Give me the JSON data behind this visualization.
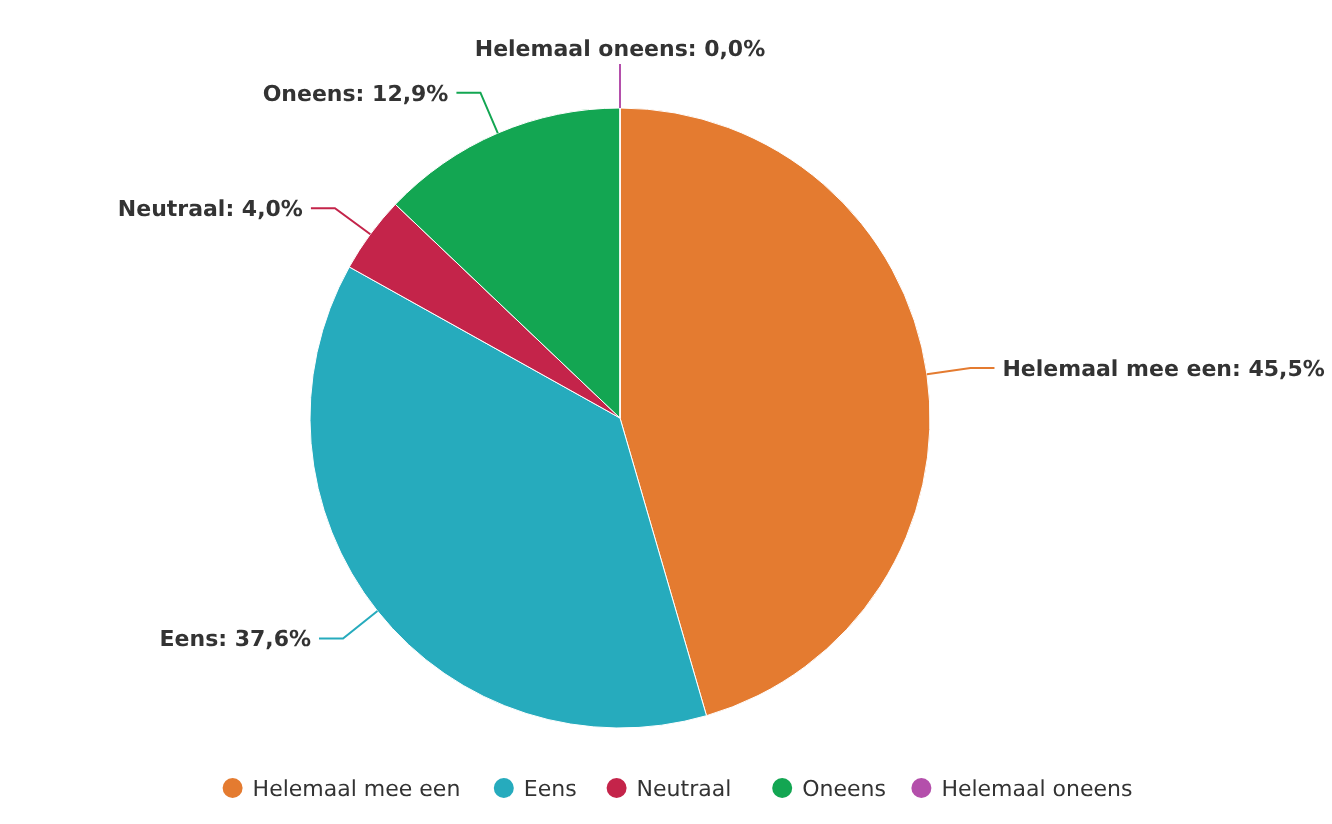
{
  "chart_data": {
    "type": "pie",
    "categories": [
      "Helemaal mee een",
      "Eens",
      "Neutraal",
      "Oneens",
      "Helemaal oneens"
    ],
    "values": [
      45.5,
      37.6,
      4.0,
      12.9,
      0.0
    ],
    "value_labels": [
      "Helemaal mee een: 45,5%",
      "Eens: 37,6%",
      "Neutraal: 4,0%",
      "Oneens: 12,9%",
      "Helemaal oneens: 0,0%"
    ],
    "colors": [
      "#e47b30",
      "#26abbd",
      "#c4244a",
      "#13a652",
      "#b44fab"
    ],
    "legend": "bottom"
  }
}
